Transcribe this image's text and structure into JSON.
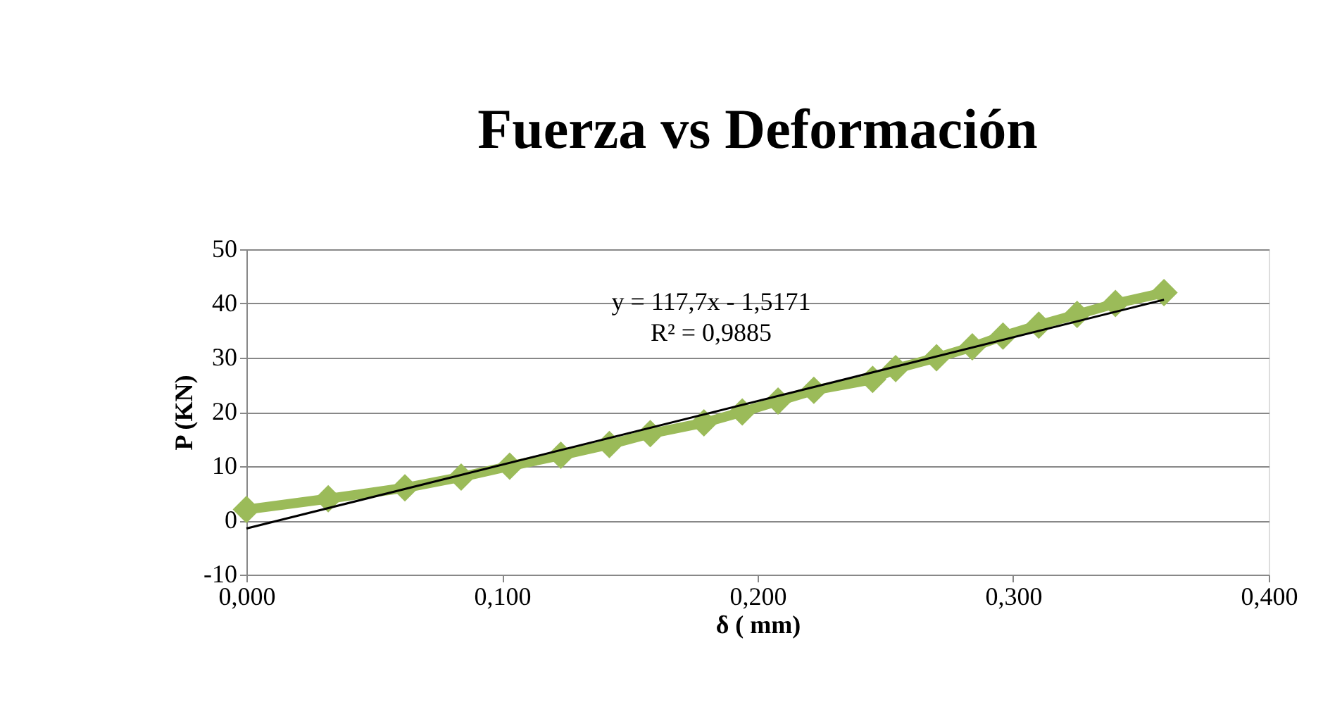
{
  "chart_data": {
    "type": "line",
    "title": "Fuerza vs Deformación",
    "xlabel": "δ ( mm)",
    "ylabel": "P (KN)",
    "x": [
      0,
      0.032,
      0.062,
      0.084,
      0.103,
      0.123,
      0.142,
      0.158,
      0.179,
      0.194,
      0.208,
      0.222,
      0.245,
      0.254,
      0.27,
      0.284,
      0.296,
      0.31,
      0.325,
      0.34,
      0.359
    ],
    "series": [
      {
        "color": "#9bbb59",
        "marker": "diamond",
        "values": [
          2,
          4,
          6,
          8,
          10,
          12,
          14,
          16,
          18,
          20,
          22,
          24,
          26,
          28,
          30,
          32,
          34,
          36,
          38,
          40,
          42
        ]
      },
      {
        "type": "line",
        "color": "#000000",
        "marker": "none",
        "x": [
          0,
          0.359
        ],
        "values": [
          -1.5,
          40.7
        ]
      }
    ],
    "annotations": [
      "y = 117,7x - 1,5171",
      "R² = 0,9885"
    ],
    "xlim": [
      0,
      0.4
    ],
    "xticks": [
      {
        "value": 0,
        "label": "0,000"
      },
      {
        "value": 0.1,
        "label": "0,100"
      },
      {
        "value": 0.2,
        "label": "0,200"
      },
      {
        "value": 0.3,
        "label": "0,300"
      },
      {
        "value": 0.4,
        "label": "0,400"
      }
    ],
    "ylim": [
      -10,
      50
    ],
    "yticks": [
      -10,
      0,
      10,
      20,
      30,
      40,
      50
    ],
    "grid": "y"
  }
}
